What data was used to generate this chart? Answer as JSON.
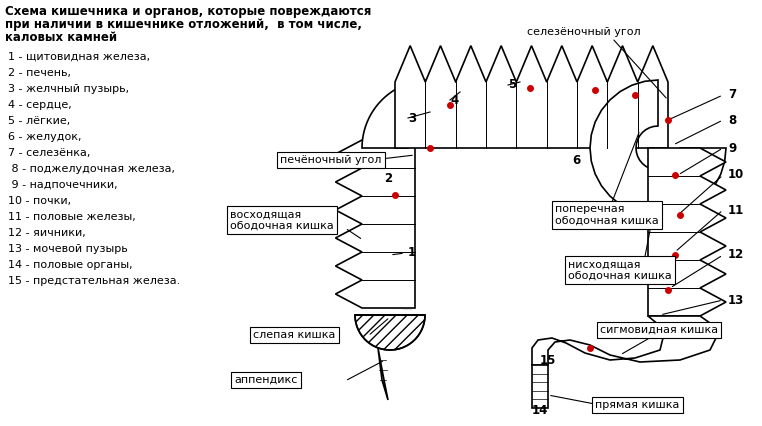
{
  "title_lines": [
    "Схема кишечника и органов, которые повреждаются",
    "при наличии в кишечнике отложений,  в том числе,",
    "каловых камней"
  ],
  "legend_items": [
    "1 - щитовидная железа,",
    "2 - печень,",
    "3 - желчный пузырь,",
    "4 - сердце,",
    "5 - лёгкие,",
    "6 - желудок,",
    "7 - селезёнка,",
    " 8 - поджелудочная железа,",
    " 9 - надпочечники,",
    "10 - почки,",
    "11 - половые железы,",
    "12 - яичники,",
    "13 - мочевой пузырь",
    "14 - половые органы,",
    "15 - предстательная железа."
  ],
  "labels": {
    "pechonochny_ugol": "печёночный угол",
    "voskhodyashchaya": "восходящая\nободочная кишка",
    "selezenochniy_ugol": "селезёночный угол",
    "poperechnaya": "поперечная\nободочная кишка",
    "niskhodyashchaya": "нисходящая\nободочная кишка",
    "slepaya": "слепая кишка",
    "appendiks": "аппендикс",
    "sigmovid": "сигмовидная кишка",
    "pryamaya": "прямая кишка"
  },
  "bg_color": "#ffffff",
  "text_color": "#000000",
  "line_color": "#000000",
  "dot_color": "#cc0000",
  "font_size": 8.5
}
